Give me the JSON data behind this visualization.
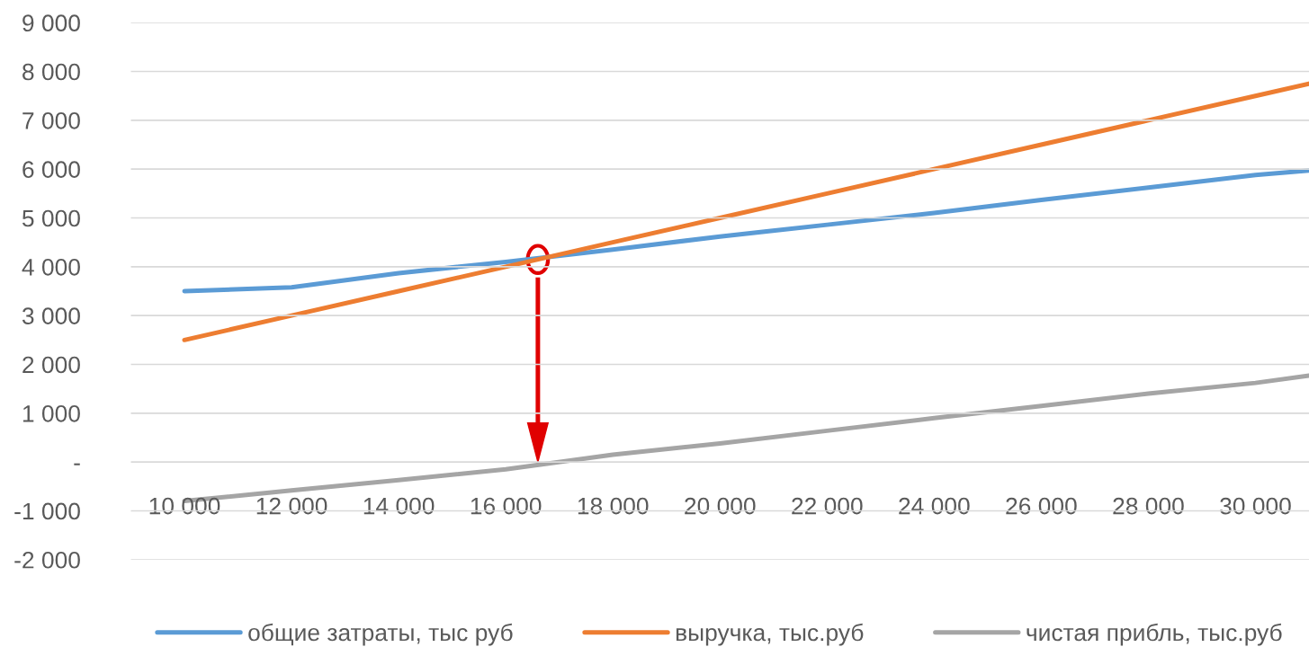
{
  "chart_data": {
    "type": "line",
    "x": [
      10000,
      12000,
      14000,
      16000,
      18000,
      20000,
      22000,
      24000,
      26000,
      28000,
      30000,
      31000
    ],
    "series": [
      {
        "name": "общие затраты, тыс руб",
        "color": "#5b9bd5",
        "values": [
          3500,
          3580,
          3870,
          4100,
          4350,
          4620,
          4860,
          5100,
          5370,
          5620,
          5880,
          5970
        ]
      },
      {
        "name": "выручка, тыс.руб",
        "color": "#ed7d31",
        "values": [
          2500,
          3000,
          3500,
          4000,
          4500,
          5000,
          5500,
          6000,
          6500,
          7000,
          7500,
          7750
        ]
      },
      {
        "name": "чистая прибль, тыс.руб",
        "color": "#a5a5a5",
        "values": [
          -800,
          -580,
          -370,
          -150,
          150,
          380,
          640,
          900,
          1150,
          1400,
          1620,
          1770
        ]
      }
    ],
    "xlim": [
      9000,
      31000
    ],
    "xticks": [
      {
        "value": 10000,
        "label": "10 000"
      },
      {
        "value": 12000,
        "label": "12 000"
      },
      {
        "value": 14000,
        "label": "14 000"
      },
      {
        "value": 16000,
        "label": "16 000"
      },
      {
        "value": 18000,
        "label": "18 000"
      },
      {
        "value": 20000,
        "label": "20 000"
      },
      {
        "value": 22000,
        "label": "22 000"
      },
      {
        "value": 24000,
        "label": "24 000"
      },
      {
        "value": 26000,
        "label": "26 000"
      },
      {
        "value": 28000,
        "label": "28 000"
      },
      {
        "value": 30000,
        "label": "30 000"
      }
    ],
    "ylim": [
      -2000,
      9000
    ],
    "yticks": [
      {
        "value": -2000,
        "label": "-2 000"
      },
      {
        "value": -1000,
        "label": "-1 000"
      },
      {
        "value": 0,
        "label": "-"
      },
      {
        "value": 1000,
        "label": "1 000"
      },
      {
        "value": 2000,
        "label": "2 000"
      },
      {
        "value": 3000,
        "label": "3 000"
      },
      {
        "value": 4000,
        "label": "4 000"
      },
      {
        "value": 5000,
        "label": "5 000"
      },
      {
        "value": 6000,
        "label": "6 000"
      },
      {
        "value": 7000,
        "label": "7 000"
      },
      {
        "value": 8000,
        "label": "8 000"
      },
      {
        "value": 9000,
        "label": "9 000"
      }
    ],
    "grid": "y",
    "legend": "bottom",
    "marker": "none",
    "line_style": "solid"
  }
}
